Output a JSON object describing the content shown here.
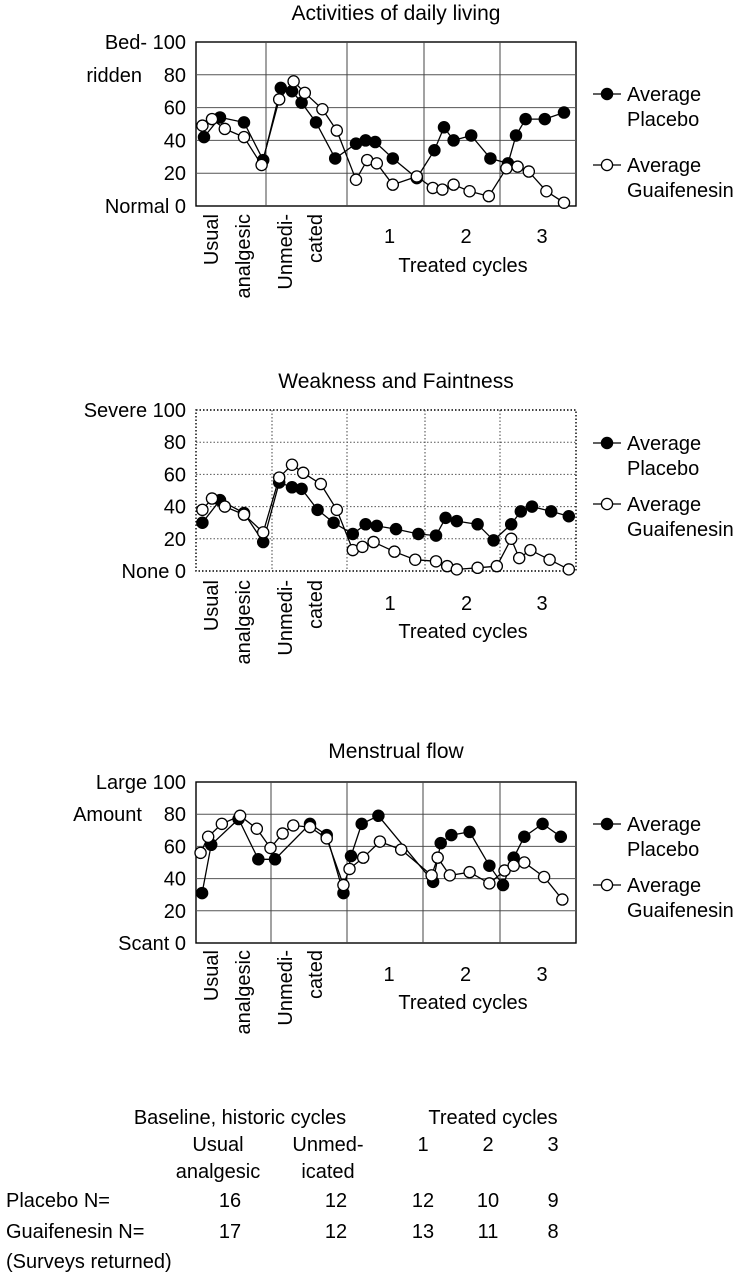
{
  "chart_data": [
    {
      "type": "line",
      "title": "Activities of daily living",
      "ylim": [
        0,
        100
      ],
      "yticks": [
        0,
        20,
        40,
        60,
        80,
        100
      ],
      "ytick_labels": [
        "Normal 0",
        "20",
        "40",
        "60",
        "80",
        "Bed- 100"
      ],
      "ytick_extra": "ridden",
      "period_labels": [
        "Usual analgesic",
        "Unmedi- cated"
      ],
      "cycle_labels": [
        "1",
        "2",
        "3"
      ],
      "cycle_axis_label": "Treated cycles",
      "grid": true,
      "legend_position": "right",
      "series": [
        {
          "name": "Average Placebo",
          "marker": "filled",
          "points": [
            [
              0.5,
              42
            ],
            [
              1.5,
              54
            ],
            [
              3.0,
              51
            ],
            [
              4.2,
              28
            ],
            [
              5.3,
              72
            ],
            [
              6.0,
              70
            ],
            [
              6.6,
              63
            ],
            [
              7.5,
              51
            ],
            [
              8.7,
              29
            ],
            [
              10.0,
              38
            ],
            [
              10.6,
              40
            ],
            [
              11.2,
              39
            ],
            [
              12.3,
              29
            ],
            [
              13.8,
              17
            ],
            [
              14.9,
              34
            ],
            [
              15.5,
              48
            ],
            [
              16.1,
              40
            ],
            [
              17.2,
              43
            ],
            [
              18.4,
              29
            ],
            [
              19.5,
              26
            ],
            [
              20.0,
              43
            ],
            [
              20.6,
              53
            ],
            [
              21.8,
              53
            ],
            [
              23.0,
              57
            ]
          ]
        },
        {
          "name": "Average Guaifenesin",
          "marker": "open",
          "points": [
            [
              0.4,
              49
            ],
            [
              1.0,
              53
            ],
            [
              1.8,
              47
            ],
            [
              3.0,
              42
            ],
            [
              4.1,
              25
            ],
            [
              5.2,
              65
            ],
            [
              6.1,
              76
            ],
            [
              6.8,
              69
            ],
            [
              7.9,
              59
            ],
            [
              8.8,
              46
            ],
            [
              10.0,
              16
            ],
            [
              10.7,
              28
            ],
            [
              11.3,
              26
            ],
            [
              12.3,
              13
            ],
            [
              13.8,
              18
            ],
            [
              14.8,
              11
            ],
            [
              15.4,
              10
            ],
            [
              16.1,
              13
            ],
            [
              17.1,
              9
            ],
            [
              18.3,
              6
            ],
            [
              19.4,
              23
            ],
            [
              20.1,
              24
            ],
            [
              20.8,
              21
            ],
            [
              21.9,
              9
            ],
            [
              23.0,
              2
            ]
          ]
        }
      ]
    },
    {
      "type": "line",
      "title": "Weakness and Faintness",
      "ylim": [
        0,
        100
      ],
      "yticks": [
        0,
        20,
        40,
        60,
        80,
        100
      ],
      "ytick_labels": [
        "None 0",
        "20",
        "40",
        "60",
        "80",
        "Severe 100"
      ],
      "period_labels": [
        "Usual analgesic",
        "Unmedi- cated"
      ],
      "cycle_labels": [
        "1",
        "2",
        "3"
      ],
      "cycle_axis_label": "Treated cycles",
      "grid": false,
      "legend_position": "right",
      "series": [
        {
          "name": "Average Placebo",
          "marker": "filled",
          "points": [
            [
              0.4,
              30
            ],
            [
              1.5,
              44
            ],
            [
              3.0,
              36
            ],
            [
              4.2,
              18
            ],
            [
              5.2,
              55
            ],
            [
              6.0,
              52
            ],
            [
              6.6,
              51
            ],
            [
              7.6,
              38
            ],
            [
              8.6,
              30
            ],
            [
              9.8,
              23
            ],
            [
              10.6,
              29
            ],
            [
              11.3,
              28
            ],
            [
              12.5,
              26
            ],
            [
              13.9,
              23
            ],
            [
              15.0,
              22
            ],
            [
              15.6,
              33
            ],
            [
              16.3,
              31
            ],
            [
              17.6,
              29
            ],
            [
              18.6,
              19
            ],
            [
              19.7,
              29
            ],
            [
              20.3,
              37
            ],
            [
              21.0,
              40
            ],
            [
              22.2,
              37
            ],
            [
              23.3,
              34
            ]
          ]
        },
        {
          "name": "Average Guaifenesin",
          "marker": "open",
          "points": [
            [
              0.4,
              38
            ],
            [
              1.0,
              45
            ],
            [
              1.8,
              40
            ],
            [
              3.0,
              35
            ],
            [
              4.2,
              24
            ],
            [
              5.2,
              58
            ],
            [
              6.0,
              66
            ],
            [
              6.7,
              61
            ],
            [
              7.8,
              54
            ],
            [
              8.8,
              38
            ],
            [
              9.8,
              13
            ],
            [
              10.4,
              15
            ],
            [
              11.1,
              18
            ],
            [
              12.4,
              12
            ],
            [
              13.7,
              7
            ],
            [
              15.0,
              6
            ],
            [
              15.7,
              3
            ],
            [
              16.3,
              1
            ],
            [
              17.6,
              2
            ],
            [
              18.8,
              3
            ],
            [
              19.7,
              20
            ],
            [
              20.2,
              8
            ],
            [
              20.9,
              13
            ],
            [
              22.1,
              7
            ],
            [
              23.3,
              1
            ]
          ]
        }
      ]
    },
    {
      "type": "line",
      "title": "Menstrual flow",
      "ylim": [
        0,
        100
      ],
      "yticks": [
        0,
        20,
        40,
        60,
        80,
        100
      ],
      "ytick_labels": [
        "Scant 0",
        "20",
        "40",
        "60",
        "80",
        "Large 100"
      ],
      "ytick_extra": "Amount",
      "period_labels": [
        "Usual analgesic",
        "Unmedi- cated"
      ],
      "cycle_labels": [
        "1",
        "2",
        "3"
      ],
      "cycle_axis_label": "Treated cycles",
      "grid": true,
      "legend_position": "right",
      "series": [
        {
          "name": "Average Placebo",
          "marker": "filled",
          "points": [
            [
              0.4,
              31
            ],
            [
              1.0,
              61
            ],
            [
              2.8,
              77
            ],
            [
              4.1,
              52
            ],
            [
              5.2,
              52
            ],
            [
              7.5,
              74
            ],
            [
              8.6,
              67
            ],
            [
              9.7,
              31
            ],
            [
              10.2,
              54
            ],
            [
              10.9,
              74
            ],
            [
              12.0,
              79
            ],
            [
              15.6,
              38
            ],
            [
              16.1,
              62
            ],
            [
              16.8,
              67
            ],
            [
              18.0,
              69
            ],
            [
              19.3,
              48
            ],
            [
              20.2,
              36
            ],
            [
              20.9,
              53
            ],
            [
              21.6,
              66
            ],
            [
              22.8,
              74
            ],
            [
              24.0,
              66
            ]
          ]
        },
        {
          "name": "Average Guaifenesin",
          "marker": "open",
          "points": [
            [
              0.3,
              56
            ],
            [
              0.8,
              66
            ],
            [
              1.7,
              74
            ],
            [
              2.9,
              79
            ],
            [
              4.0,
              71
            ],
            [
              4.9,
              59
            ],
            [
              5.7,
              68
            ],
            [
              6.4,
              73
            ],
            [
              7.5,
              72
            ],
            [
              8.6,
              65
            ],
            [
              9.7,
              36
            ],
            [
              10.1,
              46
            ],
            [
              11.0,
              53
            ],
            [
              12.1,
              63
            ],
            [
              13.5,
              58
            ],
            [
              15.5,
              42
            ],
            [
              15.9,
              53
            ],
            [
              16.7,
              42
            ],
            [
              18.0,
              44
            ],
            [
              19.3,
              37
            ],
            [
              20.3,
              45
            ],
            [
              20.9,
              48
            ],
            [
              21.6,
              50
            ],
            [
              22.9,
              41
            ],
            [
              24.1,
              27
            ]
          ]
        }
      ]
    }
  ],
  "table": {
    "header_baseline": "Baseline, historic cycles",
    "header_treated": "Treated cycles",
    "col_usual_1": "Usual",
    "col_usual_2": "analgesic",
    "col_unmed_1": "Unmed-",
    "col_unmed_2": "icated",
    "col_c1": "1",
    "col_c2": "2",
    "col_c3": "3",
    "rows": [
      {
        "label": "Placebo N=",
        "values": [
          "16",
          "12",
          "12",
          "10",
          "9"
        ]
      },
      {
        "label": "Guaifenesin N=",
        "values": [
          "17",
          "12",
          "13",
          "11",
          "8"
        ]
      }
    ],
    "note": "(Surveys returned)"
  },
  "colors": {
    "ink": "#000000",
    "grid": "#777777",
    "background": "#ffffff"
  }
}
